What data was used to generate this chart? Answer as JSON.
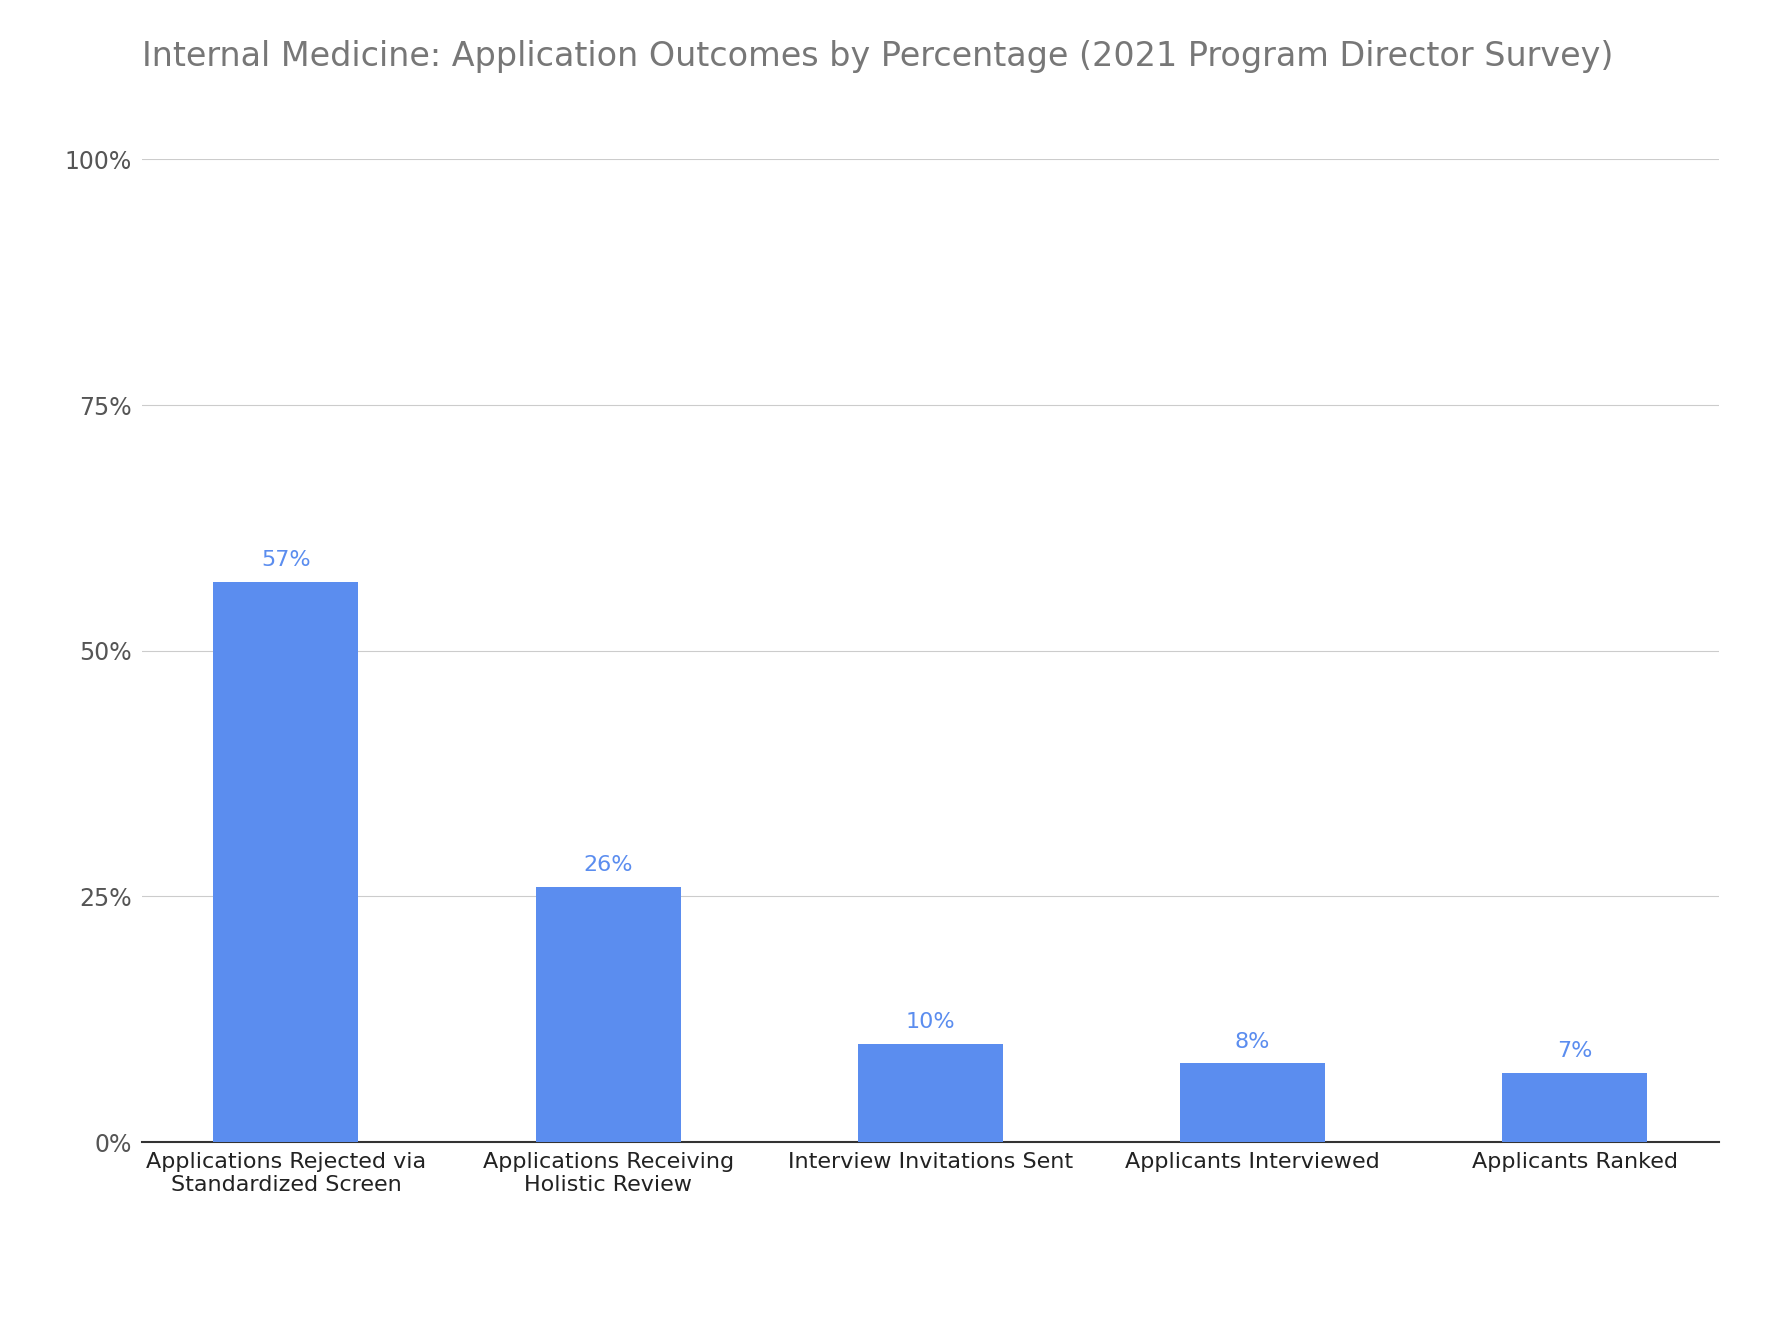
{
  "title": "Internal Medicine: Application Outcomes by Percentage (2021 Program Director Survey)",
  "categories": [
    "Applications Rejected via\nStandardized Screen",
    "Applications Receiving\nHolistic Review",
    "Interview Invitations Sent",
    "Applicants Interviewed",
    "Applicants Ranked"
  ],
  "values": [
    57,
    26,
    10,
    8,
    7
  ],
  "bar_color": "#5B8DEF",
  "label_color": "#5B8DEF",
  "title_color": "#777777",
  "axis_label_color": "#222222",
  "ytick_label_color": "#555555",
  "grid_color": "#CCCCCC",
  "background_color": "#FFFFFF",
  "ylim": [
    0,
    100
  ],
  "yticks": [
    0,
    25,
    50,
    75,
    100
  ],
  "ytick_labels": [
    "0%",
    "25%",
    "50%",
    "75%",
    "100%"
  ],
  "title_fontsize": 24,
  "tick_fontsize": 17,
  "xtick_fontsize": 16,
  "value_label_fontsize": 16,
  "bar_width": 0.45
}
